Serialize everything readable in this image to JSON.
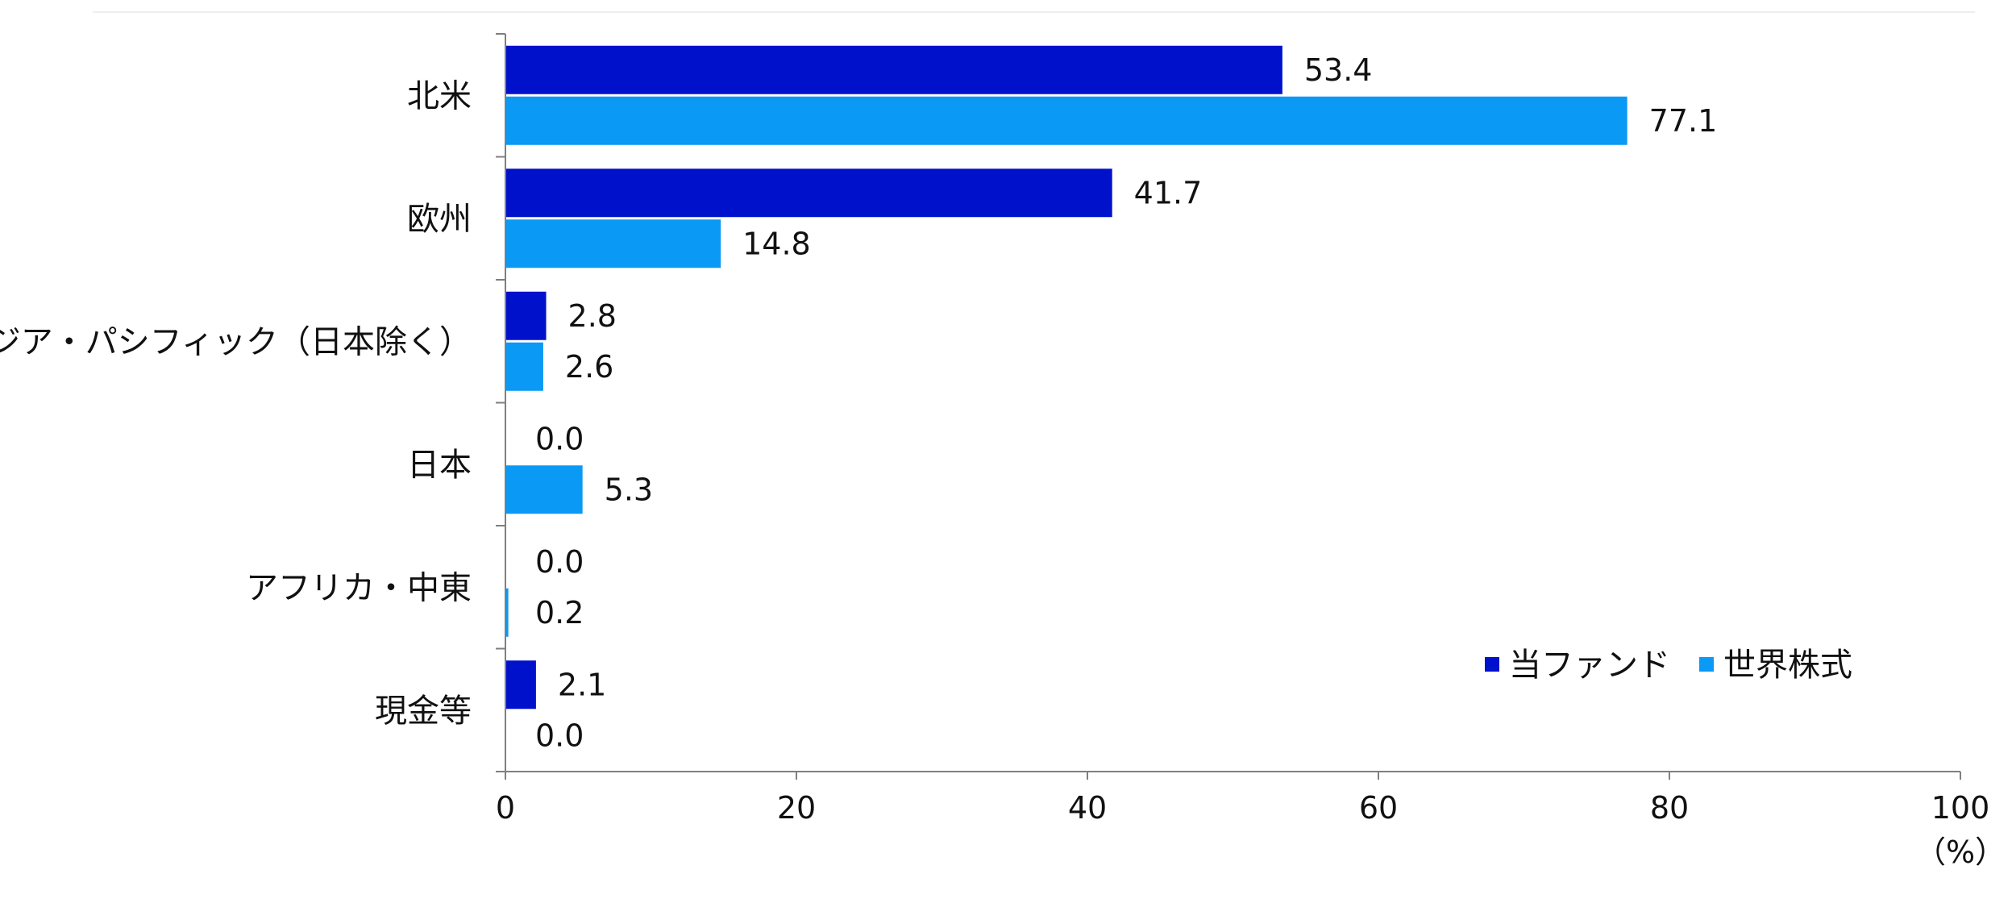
{
  "chart_data": {
    "type": "bar",
    "orientation": "horizontal",
    "categories": [
      "北米",
      "欧州",
      "アジア・パシフィック（日本除く）",
      "日本",
      "アフリカ・中東",
      "現金等"
    ],
    "series": [
      {
        "name": "当ファンド",
        "values": [
          53.4,
          41.7,
          2.8,
          0.0,
          0.0,
          2.1
        ],
        "labels": [
          "53.4",
          "41.7",
          "2.8",
          "0.0",
          "0.0",
          "2.1"
        ],
        "color": "#0011cc"
      },
      {
        "name": "世界株式",
        "values": [
          77.1,
          14.8,
          2.6,
          5.3,
          0.2,
          0.0
        ],
        "labels": [
          "77.1",
          "14.8",
          "2.6",
          "5.3",
          "0.2",
          "0.0"
        ],
        "color": "#0a99f5"
      }
    ],
    "xlim": [
      0,
      100
    ],
    "xticks": [
      "0",
      "20",
      "40",
      "60",
      "80",
      "100"
    ],
    "xunit": "（%）",
    "legend_position": "bottom-right",
    "grid": false
  }
}
